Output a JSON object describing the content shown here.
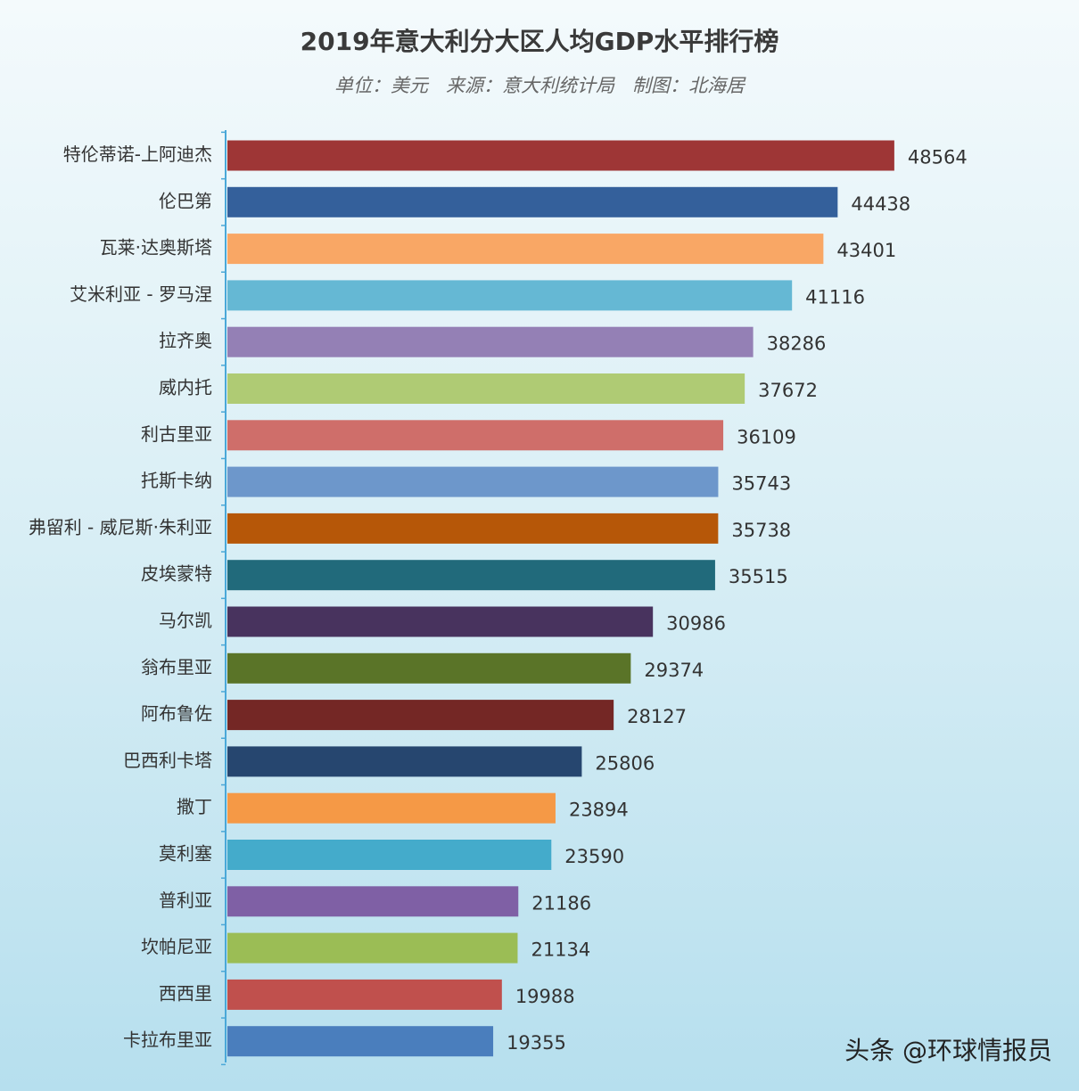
{
  "chart_data": {
    "type": "bar",
    "orientation": "horizontal",
    "title": "2019年意大利分大区人均GDP水平排行榜",
    "subtitle": "单位：美元   来源：意大利统计局   制图：北海居",
    "categories": [
      "特伦蒂诺-上阿迪杰",
      "伦巴第",
      "瓦莱·达奥斯塔",
      "艾米利亚 - 罗马涅",
      "拉齐奥",
      "威内托",
      "利古里亚",
      "托斯卡纳",
      "弗留利 - 威尼斯·朱利亚",
      "皮埃蒙特",
      "马尔凯",
      "翁布里亚",
      "阿布鲁佐",
      "巴西利卡塔",
      "撒丁",
      "莫利塞",
      "普利亚",
      "坎帕尼亚",
      "西西里",
      "卡拉布里亚"
    ],
    "values": [
      48564,
      44438,
      43401,
      41116,
      38286,
      37672,
      36109,
      35743,
      35738,
      35515,
      30986,
      29374,
      28127,
      25806,
      23894,
      23590,
      21186,
      21134,
      19988,
      19355
    ],
    "colors": [
      "#9e3636",
      "#34609b",
      "#f9a765",
      "#65b8d4",
      "#9480b5",
      "#afcb74",
      "#cf6e6a",
      "#6d97cb",
      "#b65708",
      "#216a7b",
      "#48335e",
      "#5a7428",
      "#742725",
      "#26466f",
      "#f59946",
      "#44abcb",
      "#7f60a5",
      "#9bbd55",
      "#c0504d",
      "#4a7ebd"
    ],
    "xlim": [
      0,
      50000
    ]
  },
  "watermark": "头条 @环球情报员"
}
